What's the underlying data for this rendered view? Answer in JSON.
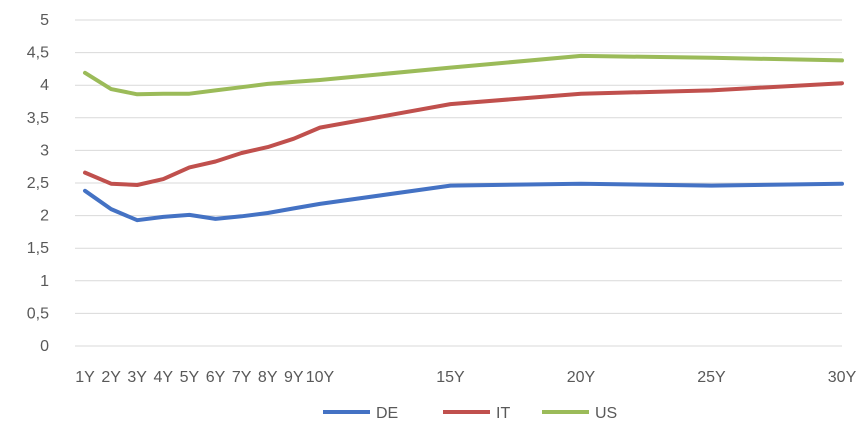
{
  "chart_data": {
    "type": "line",
    "title": "",
    "xlabel": "",
    "ylabel": "",
    "x": [
      1,
      2,
      3,
      4,
      5,
      6,
      7,
      8,
      9,
      10,
      15,
      20,
      25,
      30
    ],
    "x_tick_values": [
      1,
      2,
      3,
      4,
      5,
      6,
      7,
      8,
      9,
      10,
      15,
      20,
      25,
      30
    ],
    "x_tick_labels": [
      "1Y",
      "2Y",
      "3Y",
      "4Y",
      "5Y",
      "6Y",
      "7Y",
      "8Y",
      "9Y",
      "10Y",
      "15Y",
      "20Y",
      "25Y",
      "30Y"
    ],
    "xlim": [
      1,
      30
    ],
    "ylim": [
      0,
      5
    ],
    "y_ticks": [
      0,
      0.5,
      1,
      1.5,
      2,
      2.5,
      3,
      3.5,
      4,
      4.5,
      5
    ],
    "y_tick_labels": [
      "0",
      "0,5",
      "1",
      "1,5",
      "2",
      "2,5",
      "3",
      "3,5",
      "4",
      "4,5",
      "5"
    ],
    "grid": true,
    "legend_position": "bottom",
    "series": [
      {
        "name": "DE",
        "color": "#4472c4",
        "values": [
          2.38,
          2.1,
          1.93,
          1.98,
          2.01,
          1.95,
          1.99,
          2.04,
          2.11,
          2.18,
          2.46,
          2.49,
          2.46,
          2.49
        ]
      },
      {
        "name": "IT",
        "color": "#c0504d",
        "values": [
          2.66,
          2.49,
          2.47,
          2.56,
          2.74,
          2.83,
          2.96,
          3.05,
          3.18,
          3.35,
          3.71,
          3.87,
          3.92,
          4.03
        ]
      },
      {
        "name": "US",
        "color": "#9bbb59",
        "values": [
          4.19,
          3.94,
          3.86,
          3.87,
          3.87,
          3.92,
          3.97,
          4.02,
          4.05,
          4.08,
          4.27,
          4.45,
          4.42,
          4.38
        ]
      }
    ]
  }
}
